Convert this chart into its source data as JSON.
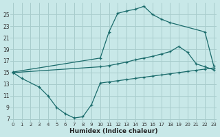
{
  "xlabel": "Humidex (Indice chaleur)",
  "bg_color": "#c8e8e8",
  "grid_color": "#a8cccc",
  "line_color": "#1a6b6b",
  "xlim": [
    -0.3,
    23.3
  ],
  "ylim": [
    6.5,
    27.0
  ],
  "xticks": [
    0,
    1,
    2,
    3,
    4,
    5,
    6,
    7,
    8,
    9,
    10,
    11,
    12,
    13,
    14,
    15,
    16,
    17,
    18,
    19,
    20,
    21,
    22,
    23
  ],
  "yticks": [
    7,
    9,
    11,
    13,
    15,
    17,
    19,
    21,
    23,
    25
  ],
  "line1_x": [
    0,
    10,
    11,
    12,
    13,
    14,
    15,
    16,
    17,
    18,
    22,
    23
  ],
  "line1_y": [
    15.1,
    17.5,
    22.0,
    25.2,
    25.6,
    25.9,
    26.4,
    25.0,
    24.2,
    23.6,
    22.0,
    16.2
  ],
  "line2_x": [
    0,
    10,
    11,
    12,
    13,
    14,
    15,
    16,
    17,
    18,
    19,
    20,
    21,
    22,
    23
  ],
  "line2_y": [
    15.0,
    16.0,
    16.2,
    16.5,
    16.8,
    17.2,
    17.5,
    17.8,
    18.2,
    18.6,
    19.5,
    18.5,
    16.5,
    16.0,
    15.5
  ],
  "line3_x": [
    0,
    1,
    3,
    4,
    5,
    6,
    7,
    8,
    9,
    10,
    11,
    12,
    13,
    14,
    15,
    16,
    17,
    18,
    19,
    20,
    21,
    22,
    23
  ],
  "line3_y": [
    15.0,
    14.0,
    12.5,
    11.0,
    9.0,
    7.9,
    7.2,
    7.4,
    9.5,
    13.2,
    13.4,
    13.6,
    13.8,
    14.0,
    14.2,
    14.4,
    14.6,
    14.8,
    15.0,
    15.2,
    15.4,
    15.6,
    15.8
  ]
}
